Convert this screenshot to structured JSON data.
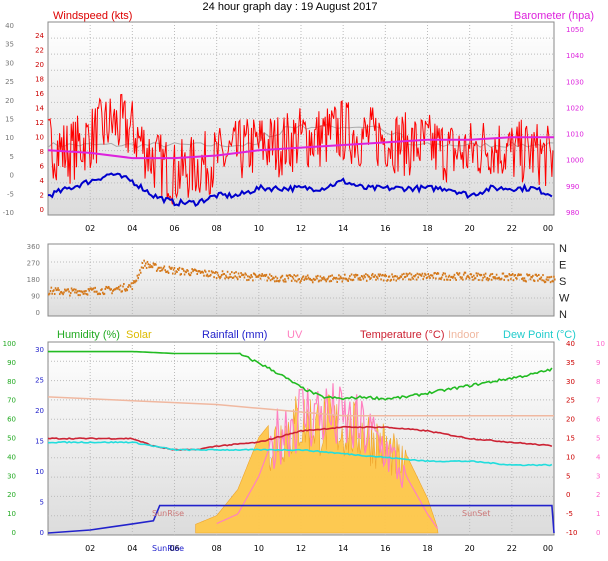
{
  "title": "24 hour graph day : 19 August 2017",
  "x_ticks": [
    "02",
    "04",
    "06",
    "08",
    "10",
    "12",
    "14",
    "16",
    "18",
    "20",
    "22",
    "00"
  ],
  "colors": {
    "wind": "#ff0000",
    "wind_avg": "#0000cc",
    "baro": "#dd22dd",
    "baro_light": "#aaaaaa",
    "winddir": "#d4781a",
    "humidity": "#22bb22",
    "solar": "#ffc84a",
    "rain": "#2222cc",
    "uv": "#ff80c0",
    "temp": "#cc2233",
    "indoor": "#f0b8a0",
    "dew": "#22dddd",
    "left_axis": "#777777",
    "hum_axis": "#22aa22",
    "temp_axis": "#cc0000",
    "uv_axis": "#ff66cc"
  },
  "chart_data": [
    {
      "type": "line",
      "name": "wind-barometer",
      "title": "24 hour graph day : 19 August 2017",
      "legend": [
        "Windspeed (kts)",
        "Barometer (hpa)"
      ],
      "y_left_ticks": [
        "0",
        "2",
        "4",
        "6",
        "8",
        "10",
        "12",
        "14",
        "16",
        "18",
        "20",
        "22",
        "24"
      ],
      "y_left_far_ticks": [
        "-10",
        "-5",
        "0",
        "5",
        "10",
        "15",
        "20",
        "25",
        "30",
        "35",
        "40"
      ],
      "y_right_ticks": [
        "980",
        "990",
        "1000",
        "1010",
        "1020",
        "1030",
        "1040",
        "1050"
      ],
      "ylim_left": [
        0,
        25
      ],
      "ylim_right": [
        980,
        1050
      ],
      "series": [
        {
          "name": "Windspeed (kts)",
          "x": [
            0,
            1,
            2,
            3,
            4,
            5,
            6,
            7,
            8,
            9,
            10,
            11,
            12,
            13,
            14,
            15,
            16,
            17,
            18,
            19,
            20,
            21,
            22,
            23,
            24
          ],
          "values": [
            9,
            8,
            10,
            12,
            11,
            7,
            5,
            6,
            7,
            8,
            9,
            9,
            10,
            10,
            11,
            10,
            10,
            9,
            9,
            8,
            8,
            9,
            8,
            8,
            7
          ]
        },
        {
          "name": "Avg wind",
          "x": [
            0,
            1,
            2,
            3,
            4,
            5,
            6,
            7,
            8,
            9,
            10,
            11,
            12,
            13,
            14,
            15,
            16,
            17,
            18,
            19,
            20,
            21,
            22,
            23,
            24
          ],
          "values": [
            2,
            3,
            4,
            5,
            4,
            2,
            1,
            1,
            2,
            2,
            3,
            3,
            3,
            3,
            4,
            3,
            3,
            3,
            3,
            3,
            2,
            3,
            3,
            3,
            2
          ]
        },
        {
          "name": "Barometer (hpa)",
          "x": [
            0,
            2,
            4,
            6,
            8,
            10,
            12,
            14,
            16,
            18,
            20,
            22,
            24
          ],
          "values": [
            1004,
            1003,
            1001,
            1001,
            1002,
            1004,
            1005,
            1006,
            1007,
            1008,
            1008,
            1009,
            1009
          ]
        }
      ]
    },
    {
      "type": "scatter",
      "name": "wind-direction",
      "y_left_ticks": [
        "0",
        "90",
        "180",
        "270",
        "360"
      ],
      "y_right_ticks": [
        "N",
        "E",
        "S",
        "W",
        "N"
      ],
      "ylim": [
        0,
        360
      ],
      "series": [
        {
          "name": "Wind direction",
          "x": [
            0,
            1,
            2,
            3,
            4,
            4.5,
            5,
            6,
            8,
            10,
            12,
            14,
            16,
            18,
            20,
            22,
            24
          ],
          "values": [
            120,
            115,
            120,
            125,
            150,
            270,
            250,
            230,
            210,
            195,
            185,
            190,
            195,
            200,
            200,
            195,
            185
          ]
        }
      ]
    },
    {
      "type": "line",
      "name": "temperature-humidity",
      "legend": [
        "Humidity (%)",
        "Solar",
        "Rainfall (mm)",
        "UV",
        "Temperature (°C)",
        "Indoor",
        "Dew Point (°C)"
      ],
      "y_left_far_ticks": [
        "0",
        "10",
        "20",
        "30",
        "40",
        "50",
        "60",
        "70",
        "80",
        "90",
        "100"
      ],
      "y_left_ticks": [
        "0",
        "5",
        "10",
        "15",
        "20",
        "25",
        "30"
      ],
      "y_right_ticks": [
        "-10",
        "-5",
        "0",
        "5",
        "10",
        "15",
        "20",
        "25",
        "30",
        "35",
        "40"
      ],
      "y_uv_ticks": [
        "0",
        "1",
        "2",
        "3",
        "4",
        "5",
        "6",
        "7",
        "8",
        "9",
        "10"
      ],
      "annotations": [
        "SunRise",
        "SunSet"
      ],
      "series": [
        {
          "name": "Humidity (%)",
          "x": [
            0,
            2,
            4,
            6,
            8,
            9,
            10,
            11,
            12,
            13,
            14,
            15,
            16,
            17,
            18,
            19,
            20,
            21,
            22,
            23,
            24
          ],
          "values": [
            96,
            96,
            96,
            95,
            95,
            95,
            90,
            84,
            77,
            72,
            71,
            72,
            71,
            72,
            74,
            76,
            78,
            80,
            82,
            84,
            87
          ]
        },
        {
          "name": "Temperature (°C)",
          "x": [
            0,
            2,
            4,
            5,
            6,
            7,
            8,
            10,
            12,
            14,
            16,
            18,
            20,
            22,
            24
          ],
          "values": [
            15,
            15,
            15,
            13,
            12,
            12,
            13,
            14,
            17,
            18,
            18,
            17,
            15,
            14,
            13
          ]
        },
        {
          "name": "Dew Point (°C)",
          "x": [
            0,
            2,
            4,
            5,
            6,
            7,
            8,
            10,
            12,
            14,
            16,
            18,
            20,
            22,
            24
          ],
          "values": [
            14,
            14,
            14,
            13,
            12,
            12,
            12,
            12,
            12,
            11,
            10,
            9,
            9,
            8,
            8
          ]
        },
        {
          "name": "Indoor",
          "x": [
            0,
            4,
            8,
            10,
            12,
            14,
            16,
            20,
            24
          ],
          "values": [
            26,
            25,
            24,
            23,
            22,
            21,
            21,
            21,
            21
          ]
        },
        {
          "name": "Rainfall (mm)",
          "x": [
            0,
            2,
            3,
            4,
            5,
            5.3,
            22,
            23.9,
            24
          ],
          "values": [
            0,
            0.5,
            1.0,
            1.5,
            2.0,
            4.5,
            4.5,
            4.5,
            0
          ]
        },
        {
          "name": "Solar",
          "x": [
            7,
            8,
            9,
            10,
            11,
            12,
            13,
            14,
            15,
            16,
            17,
            18,
            18.5
          ],
          "values": [
            0.05,
            0.1,
            0.25,
            0.55,
            0.7,
            0.8,
            0.78,
            0.75,
            0.72,
            0.62,
            0.45,
            0.2,
            0.02
          ]
        },
        {
          "name": "UV",
          "x": [
            8,
            9,
            10,
            11,
            12,
            13,
            14,
            15,
            16,
            17,
            18,
            18.5
          ],
          "values": [
            0.5,
            1,
            3,
            6,
            7,
            7,
            6.5,
            6,
            5,
            3,
            1,
            0.2
          ]
        }
      ]
    }
  ]
}
